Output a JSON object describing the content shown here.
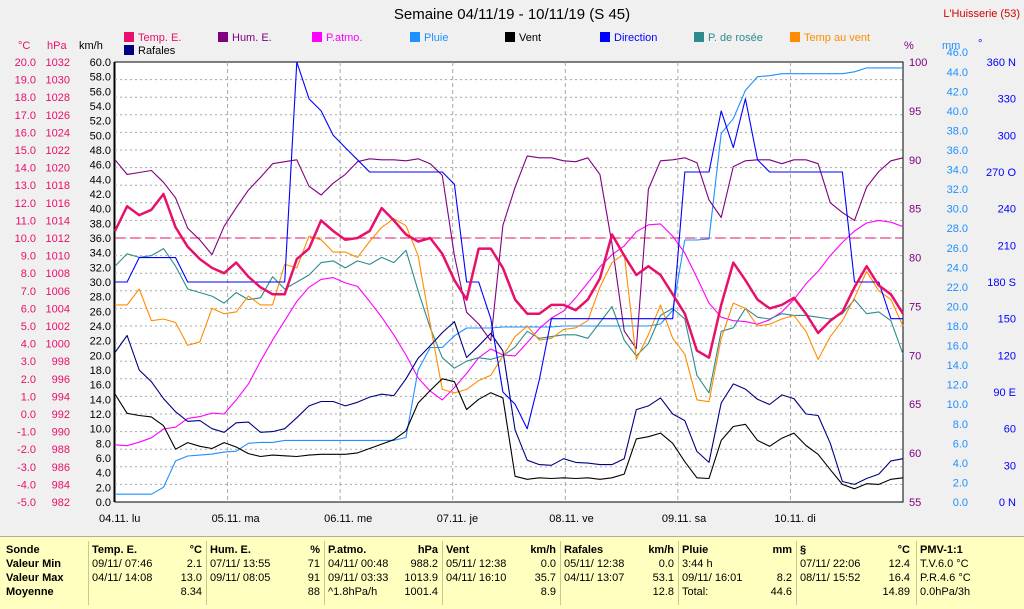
{
  "header": {
    "title": "Semaine 04/11/19 - 10/11/19 (S 45)",
    "station": "L'Huisserie (53)"
  },
  "legend": [
    {
      "label": "Temp. E.",
      "color": "#e8106a"
    },
    {
      "label": "Hum. E.",
      "color": "#800080"
    },
    {
      "label": "P.atmo.",
      "color": "#ff00ff"
    },
    {
      "label": "Pluie",
      "color": "#1e90ff"
    },
    {
      "label": "Vent",
      "color": "#000000"
    },
    {
      "label": "Direction",
      "color": "#0000ff"
    },
    {
      "label": "P. de rosée",
      "color": "#2e8b8b"
    },
    {
      "label": "Temp au vent",
      "color": "#ff8c00"
    },
    {
      "label": "Rafales",
      "color": "#000080"
    }
  ],
  "axis_units": {
    "temp": "°C",
    "pressure": "hPa",
    "wind": "km/h",
    "humidity": "%",
    "rain": "mm",
    "direction": "°"
  },
  "chart_data": {
    "type": "line",
    "title": "Semaine 04/11/19 - 10/11/19 (S 45)",
    "x_labels": [
      "04.11. lu",
      "05.11. ma",
      "06.11. me",
      "07.11. je",
      "08.11. ve",
      "09.11. sa",
      "10.11. di"
    ],
    "axes": {
      "temp": {
        "unit": "°C",
        "ylim": [
          -5,
          20
        ],
        "step": 1.0
      },
      "pressure": {
        "unit": "hPa",
        "ylim": [
          982,
          1032
        ],
        "step": 2
      },
      "wind": {
        "unit": "km/h",
        "ylim": [
          0,
          60
        ],
        "step": 2
      },
      "humidity": {
        "unit": "%",
        "ylim": [
          55,
          100
        ],
        "step": 5
      },
      "rain": {
        "unit": "mm",
        "ylim": [
          0,
          45
        ],
        "step": 2
      },
      "direction": {
        "ticks": [
          "0 N",
          "30",
          "60",
          "90 E",
          "120",
          "150",
          "180 S",
          "210",
          "240",
          "270 O",
          "300",
          "330",
          "360 N"
        ]
      }
    },
    "reference_line": {
      "axis": "temp",
      "value": 10.0
    },
    "grid": true,
    "series": [
      {
        "name": "Temp. E.",
        "axis": "temp",
        "color": "#e8106a",
        "values": [
          10.4,
          11.8,
          11.3,
          11.6,
          12.5,
          10.6,
          9.5,
          8.8,
          8.3,
          8.0,
          8.6,
          7.8,
          7.2,
          6.8,
          6.8,
          8.8,
          9.4,
          11.0,
          10.4,
          9.9,
          10.0,
          10.4,
          11.7,
          11.0,
          10.2,
          9.8,
          10.0,
          9.1,
          7.6,
          6.5,
          9.4,
          9.4,
          8.3,
          6.5,
          5.7,
          5.7,
          6.2,
          6.2,
          5.9,
          6.5,
          7.7,
          10.2,
          9.0,
          7.9,
          8.4,
          7.9,
          6.8,
          5.7,
          3.6,
          3.2,
          6.2,
          8.6,
          7.6,
          6.5,
          6.0,
          6.2,
          6.6,
          5.7,
          4.6,
          5.3,
          5.8,
          7.2,
          8.4,
          7.3,
          6.8,
          5.7
        ]
      },
      {
        "name": "Hum. E.",
        "axis": "humidity",
        "color": "#800080",
        "values": [
          90.0,
          88.5,
          88.7,
          88.9,
          87.7,
          86.1,
          83.0,
          81.8,
          80.3,
          83.2,
          85.1,
          86.9,
          88.2,
          89.6,
          89.8,
          90.0,
          87.3,
          86.4,
          87.6,
          88.5,
          89.8,
          90.1,
          90.0,
          90.0,
          89.9,
          90.1,
          89.6,
          88.4,
          80.2,
          74.4,
          73.2,
          71.5,
          83.3,
          87.2,
          90.4,
          90.2,
          90.2,
          89.9,
          89.8,
          90.2,
          88.5,
          81.4,
          72.5,
          70.7,
          87.0,
          89.9,
          90.0,
          90.2,
          89.7,
          85.9,
          84.1,
          89.3,
          89.9,
          90.0,
          90.0,
          89.6,
          90.0,
          90.0,
          89.6,
          85.6,
          84.6,
          83.8,
          87.2,
          88.8,
          89.9,
          90.2
        ]
      },
      {
        "name": "P.atmo.",
        "axis": "pressure",
        "color": "#ff00ff",
        "values": [
          988.5,
          988.4,
          988.8,
          989.3,
          990.3,
          990.5,
          991.5,
          991.7,
          992.1,
          992.0,
          993.6,
          995.4,
          998.0,
          1000.4,
          1002.6,
          1004.8,
          1006.4,
          1007.3,
          1007.5,
          1006.9,
          1006.5,
          1004.8,
          1003.0,
          1001.0,
          998.7,
          996.1,
          994.6,
          993.6,
          995.0,
          996.6,
          998.4,
          999.4,
          998.7,
          998.6,
          1000.1,
          1001.7,
          1002.9,
          1003.7,
          1005.2,
          1006.9,
          1008.7,
          1010.1,
          1011.1,
          1012.7,
          1013.5,
          1013.6,
          1012.2,
          1010.3,
          1007.5,
          1004.6,
          1003.0,
          1002.6,
          1002.5,
          1002.2,
          1002.7,
          1003.6,
          1005.0,
          1006.8,
          1008.2,
          1010.0,
          1011.5,
          1012.8,
          1013.7,
          1014.0,
          1013.8,
          1013.3
        ]
      },
      {
        "name": "Pluie",
        "axis": "rain",
        "color": "#1e90ff",
        "values": [
          0.8,
          0.8,
          0.8,
          0.8,
          1.5,
          4.2,
          4.7,
          4.8,
          4.9,
          5.1,
          5.2,
          6.0,
          6.1,
          6.1,
          6.3,
          6.3,
          6.3,
          6.3,
          6.3,
          6.3,
          6.3,
          6.3,
          6.3,
          6.3,
          6.6,
          13.5,
          15.8,
          15.8,
          17.0,
          17.8,
          17.8,
          17.8,
          17.9,
          17.9,
          17.9,
          17.9,
          17.9,
          18.0,
          18.0,
          18.0,
          18.0,
          18.0,
          18.0,
          18.0,
          18.0,
          18.2,
          19.6,
          26.8,
          26.8,
          26.9,
          37.7,
          39.2,
          42.1,
          43.5,
          43.6,
          43.8,
          43.8,
          43.8,
          43.8,
          43.8,
          43.8,
          44.0,
          44.4,
          44.4,
          44.4,
          44.4
        ]
      },
      {
        "name": "Vent",
        "axis": "wind",
        "color": "#000000",
        "values": [
          14.7,
          12.1,
          11.8,
          11.6,
          10.4,
          7.2,
          8.1,
          7.6,
          7.3,
          8.1,
          7.5,
          6.6,
          6.2,
          6.4,
          6.3,
          6.2,
          6.4,
          6.5,
          6.5,
          6.5,
          6.7,
          7.3,
          7.9,
          8.5,
          9.7,
          13.5,
          15.2,
          16.8,
          16.4,
          12.6,
          14.0,
          14.9,
          14.2,
          3.5,
          3.1,
          3.3,
          3.2,
          3.3,
          3.2,
          3.3,
          3.1,
          3.3,
          3.8,
          8.6,
          8.9,
          9.4,
          8.0,
          5.5,
          3.3,
          3.2,
          8.4,
          10.3,
          10.6,
          8.4,
          7.6,
          8.7,
          9.4,
          7.7,
          6.5,
          4.4,
          2.4,
          1.8,
          2.5,
          2.4,
          3.1,
          3.3
        ]
      },
      {
        "name": "Rafales",
        "axis": "wind",
        "color": "#000080",
        "values": [
          20.4,
          22.7,
          18.0,
          16.4,
          14.1,
          12.3,
          11.0,
          11.1,
          10.0,
          9.5,
          10.8,
          10.9,
          9.5,
          9.6,
          10.0,
          11.5,
          13.1,
          13.7,
          13.7,
          13.1,
          13.6,
          14.3,
          14.7,
          14.5,
          16.8,
          19.6,
          21.3,
          23.1,
          24.6,
          19.7,
          21.3,
          23.0,
          20.6,
          9.8,
          5.7,
          5.1,
          5.0,
          5.9,
          5.4,
          5.3,
          5.1,
          5.1,
          5.9,
          12.6,
          13.1,
          14.2,
          12.0,
          11.1,
          6.9,
          5.4,
          13.5,
          16.1,
          15.4,
          14.0,
          13.3,
          14.6,
          14.1,
          12.0,
          11.8,
          8.0,
          2.8,
          2.4,
          3.2,
          3.8,
          5.6,
          5.9
        ]
      },
      {
        "name": "Direction",
        "axis": "direction",
        "color": "#0000ff",
        "values": [
          180,
          180,
          200,
          200,
          200,
          200,
          180,
          180,
          180,
          180,
          180,
          180,
          180,
          180,
          180,
          360,
          330,
          320,
          300,
          290,
          280,
          270,
          270,
          270,
          270,
          270,
          270,
          270,
          260,
          180,
          180,
          150,
          90,
          80,
          60,
          100,
          150,
          150,
          150,
          150,
          150,
          150,
          150,
          150,
          150,
          150,
          150,
          270,
          270,
          270,
          320,
          290,
          330,
          280,
          270,
          270,
          270,
          270,
          270,
          270,
          270,
          180,
          180,
          180,
          150,
          150
        ]
      },
      {
        "name": "P. de rosée",
        "axis": "temp",
        "color": "#2e8b8b",
        "values": [
          8.4,
          9.1,
          8.9,
          9.0,
          9.4,
          8.4,
          7.1,
          6.9,
          6.7,
          6.3,
          6.9,
          6.5,
          6.6,
          7.8,
          7.1,
          7.5,
          7.9,
          8.6,
          8.7,
          8.3,
          8.7,
          8.5,
          8.9,
          8.6,
          9.3,
          7.0,
          4.9,
          3.2,
          2.6,
          3.0,
          3.2,
          3.1,
          3.3,
          3.8,
          4.7,
          4.3,
          4.4,
          4.5,
          4.5,
          4.3,
          5.2,
          6.1,
          4.2,
          3.3,
          4.0,
          5.6,
          6.0,
          5.4,
          2.2,
          1.2,
          4.7,
          4.9,
          6.0,
          5.5,
          5.4,
          5.7,
          5.6,
          5.6,
          5.5,
          5.4,
          5.7,
          6.5,
          5.7,
          5.8,
          5.3,
          3.4
        ]
      },
      {
        "name": "Temp au vent",
        "axis": "temp",
        "color": "#ff8c00",
        "values": [
          6.2,
          6.2,
          7.1,
          5.3,
          5.4,
          5.2,
          3.9,
          4.1,
          6.0,
          5.7,
          5.8,
          6.7,
          6.2,
          6.2,
          8.5,
          8.3,
          10.1,
          9.9,
          9.2,
          9.2,
          8.9,
          9.8,
          10.6,
          11.1,
          10.7,
          9.0,
          5.1,
          1.4,
          1.2,
          1.4,
          1.9,
          2.2,
          3.3,
          4.4,
          5.0,
          4.2,
          4.3,
          4.8,
          4.9,
          5.3,
          7.2,
          8.6,
          9.1,
          3.1,
          4.5,
          6.2,
          4.3,
          3.4,
          0.8,
          0.7,
          4.3,
          6.3,
          6.0,
          5.0,
          5.1,
          5.4,
          5.6,
          4.7,
          3.1,
          4.4,
          5.3,
          6.6,
          8.1,
          7.0,
          6.5,
          5.0
        ]
      }
    ]
  },
  "stats": {
    "sonde": {
      "h": "Sonde",
      "min": "Valeur Min",
      "max": "Valeur Max",
      "moy": "Moyenne"
    },
    "blocks": [
      {
        "h": "Temp. E.",
        "u": "°C",
        "min_t": "09/11/ 07:46",
        "min_v": "2.1",
        "max_t": "04/11/ 14:08",
        "max_v": "13.0",
        "moy_t": "",
        "moy_v": "8.34"
      },
      {
        "h": "Hum. E.",
        "u": "%",
        "min_t": "07/11/ 13:55",
        "min_v": "71",
        "max_t": "09/11/ 08:05",
        "max_v": "91",
        "moy_t": "",
        "moy_v": "88"
      },
      {
        "h": "P.atmo.",
        "u": "hPa",
        "min_t": "04/11/ 00:48",
        "min_v": "988.2",
        "max_t": "09/11/ 03:33",
        "max_v": "1013.9",
        "moy_t": "^1.8hPa/h",
        "moy_v": "1001.4"
      },
      {
        "h": "Vent",
        "u": "km/h",
        "min_t": "05/11/ 12:38",
        "min_v": "0.0",
        "max_t": "04/11/ 16:10",
        "max_v": "35.7",
        "moy_t": "",
        "moy_v": "8.9"
      },
      {
        "h": "Rafales",
        "u": "km/h",
        "min_t": "05/11/ 12:38",
        "min_v": "0.0",
        "max_t": "04/11/ 13:07",
        "max_v": "53.1",
        "moy_t": "",
        "moy_v": "12.8"
      },
      {
        "h": "Pluie",
        "u": "mm",
        "min_t": "3:44 h",
        "min_v": "",
        "max_t": "09/11/ 16:01",
        "max_v": "8.2",
        "moy_t": "Total:",
        "moy_v": "44.6"
      },
      {
        "h": "§",
        "u": "°C",
        "min_t": "07/11/ 22:06",
        "min_v": "12.4",
        "max_t": "08/11/ 15:52",
        "max_v": "16.4",
        "moy_t": "",
        "moy_v": "14.89"
      }
    ],
    "pmv": {
      "h": "PMV-1:1",
      "l1": "T.V.6.0 °C",
      "l2": "P.R.4.6 °C",
      "l3": "0.0hPa/3h"
    }
  }
}
